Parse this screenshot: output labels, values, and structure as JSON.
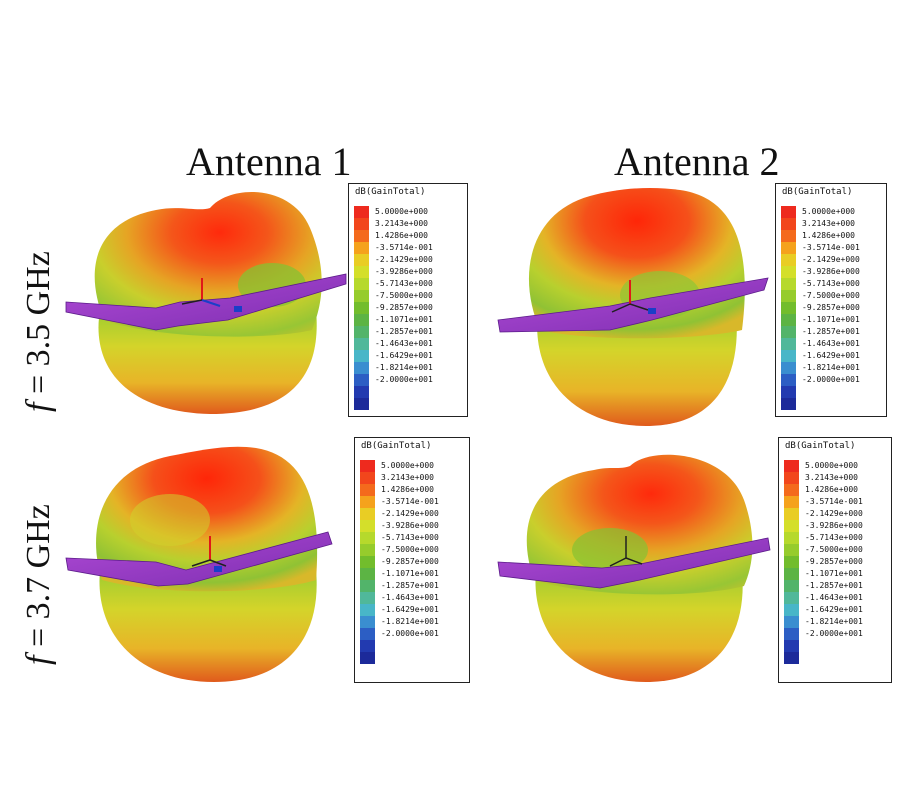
{
  "columns": [
    {
      "title": "Antenna 1"
    },
    {
      "title": "Antenna 2"
    }
  ],
  "rows": [
    {
      "symbol": "f",
      "label": " = 3.5 GHz"
    },
    {
      "symbol": "f",
      "label": " = 3.7 GHz"
    }
  ],
  "legend": {
    "title": "dB(GainTotal)",
    "colors": [
      "#ee2a1e",
      "#f2461c",
      "#f46a1c",
      "#f5a21c",
      "#e9cd24",
      "#d4df2a",
      "#b6d92c",
      "#96cc2c",
      "#72bd2c",
      "#5cb444",
      "#52b46a",
      "#50b89a",
      "#48b6c8",
      "#3a8ed0",
      "#2c5ec4",
      "#223ab0",
      "#1c2a9a"
    ],
    "panels": [
      {
        "values": [
          "5.0000e+000",
          "3.2143e+000",
          "1.4286e+000",
          "-3.5714e-001",
          "-2.1429e+000",
          "-3.9286e+000",
          "-5.7143e+000",
          "-7.5000e+000",
          "-9.2857e+000",
          "-1.1071e+001",
          "-1.2857e+001",
          "-1.4643e+001",
          "-1.6429e+001",
          "-1.8214e+001",
          "-2.0000e+001"
        ]
      },
      {
        "values": [
          "5.0000e+000",
          "3.2143e+000",
          "1.4286e+000",
          "-3.5714e-001",
          "-2.1429e+000",
          "-3.9286e+000",
          "-5.7143e+000",
          "-7.5000e+000",
          "-9.2857e+000",
          "-1.1071e+001",
          "-1.2857e+001",
          "-1.4643e+001",
          "-1.6429e+001",
          "-1.8214e+001",
          "-2.0000e+001"
        ]
      },
      {
        "values": [
          "5.0000e+000",
          "3.2143e+000",
          "1.4286e+000",
          "-3.5714e-001",
          "-2.1429e+000",
          "-3.9286e+000",
          "-5.7143e+000",
          "-7.5000e+000",
          "-9.2857e+000",
          "-1.1071e+001",
          "-1.2857e+001",
          "-1.4643e+001",
          "-1.6429e+001",
          "-1.8214e+001",
          "-2.0000e+001"
        ]
      },
      {
        "values": [
          "5.0000e+000",
          "3.2143e+000",
          "1.4286e+000",
          "-3.5714e-001",
          "-2.1429e+000",
          "-3.9286e+000",
          "-5.7143e+000",
          "-7.5000e+000",
          "-9.2857e+000",
          "-1.1071e+001",
          "-1.2857e+001",
          "-1.4643e+001",
          "-1.6429e+001",
          "-1.8214e+001",
          "-2.0000e+001"
        ]
      }
    ]
  },
  "colors": {
    "ground_plane": "#a040c8",
    "ground_plane_dark": "#6a2a9a",
    "pattern_peak": "#ff3a10",
    "pattern_mid": "#e8c828",
    "pattern_low": "#88c838"
  }
}
